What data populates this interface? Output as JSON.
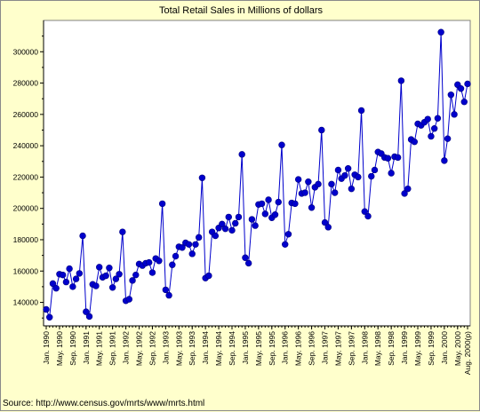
{
  "chart_data": {
    "type": "line",
    "title": "Total Retail Sales in Millions of dollars",
    "source": "Source: http://www.census.gov/mrts/www/mrts.html",
    "xlabel": "",
    "ylabel": "",
    "ylim": [
      125000,
      320000
    ],
    "y_ticks": [
      140000,
      160000,
      180000,
      200000,
      220000,
      240000,
      260000,
      280000,
      300000
    ],
    "y_tick_labels": [
      "140000",
      "160000",
      "180000",
      "200000",
      "220000",
      "240000",
      "260000",
      "280000",
      "300000"
    ],
    "x_tick_labels": [
      "Jan. 1990",
      "May. 1990",
      "Sep. 1990",
      "Jan. 1991",
      "May. 1991",
      "Sep. 1991",
      "Jan. 1992",
      "May. 1992",
      "Sep. 1992",
      "Jan. 1993",
      "May. 1993",
      "Sep. 1993",
      "Jan. 1994",
      "May. 1994",
      "Sep. 1994",
      "Jan. 1995",
      "May. 1995",
      "Sep. 1995",
      "Jan. 1996",
      "May. 1996",
      "Sep. 1996",
      "Jan. 1997",
      "May. 1997",
      "Sep. 1997",
      "Jan. 1998",
      "May. 1998",
      "Sep. 1998",
      "Jan. 1999",
      "May. 1999",
      "Sep. 1999",
      "Jan. 2000",
      "May. 2000",
      "Aug. 2000(p)"
    ],
    "grid": false,
    "legend": "none",
    "colors": {
      "line": "#0000cc",
      "marker": "#0000cc",
      "axis": "#000000"
    },
    "x": [
      "1990-01",
      "1990-02",
      "1990-03",
      "1990-04",
      "1990-05",
      "1990-06",
      "1990-07",
      "1990-08",
      "1990-09",
      "1990-10",
      "1990-11",
      "1990-12",
      "1991-01",
      "1991-02",
      "1991-03",
      "1991-04",
      "1991-05",
      "1991-06",
      "1991-07",
      "1991-08",
      "1991-09",
      "1991-10",
      "1991-11",
      "1991-12",
      "1992-01",
      "1992-02",
      "1992-03",
      "1992-04",
      "1992-05",
      "1992-06",
      "1992-07",
      "1992-08",
      "1992-09",
      "1992-10",
      "1992-11",
      "1992-12",
      "1993-01",
      "1993-02",
      "1993-03",
      "1993-04",
      "1993-05",
      "1993-06",
      "1993-07",
      "1993-08",
      "1993-09",
      "1993-10",
      "1993-11",
      "1993-12",
      "1994-01",
      "1994-02",
      "1994-03",
      "1994-04",
      "1994-05",
      "1994-06",
      "1994-07",
      "1994-08",
      "1994-09",
      "1994-10",
      "1994-11",
      "1994-12",
      "1995-01",
      "1995-02",
      "1995-03",
      "1995-04",
      "1995-05",
      "1995-06",
      "1995-07",
      "1995-08",
      "1995-09",
      "1995-10",
      "1995-11",
      "1995-12",
      "1996-01",
      "1996-02",
      "1996-03",
      "1996-04",
      "1996-05",
      "1996-06",
      "1996-07",
      "1996-08",
      "1996-09",
      "1996-10",
      "1996-11",
      "1996-12",
      "1997-01",
      "1997-02",
      "1997-03",
      "1997-04",
      "1997-05",
      "1997-06",
      "1997-07",
      "1997-08",
      "1997-09",
      "1997-10",
      "1997-11",
      "1997-12",
      "1998-01",
      "1998-02",
      "1998-03",
      "1998-04",
      "1998-05",
      "1998-06",
      "1998-07",
      "1998-08",
      "1998-09",
      "1998-10",
      "1998-11",
      "1998-12",
      "1999-01",
      "1999-02",
      "1999-03",
      "1999-04",
      "1999-05",
      "1999-06",
      "1999-07",
      "1999-08",
      "1999-09",
      "1999-10",
      "1999-11",
      "1999-12",
      "2000-01",
      "2000-02",
      "2000-03",
      "2000-04",
      "2000-05",
      "2000-06",
      "2000-07",
      "2000-08"
    ],
    "values": [
      135500,
      130500,
      152000,
      149000,
      158000,
      157500,
      153000,
      161500,
      150000,
      155000,
      158500,
      182500,
      134000,
      131000,
      151500,
      150500,
      162500,
      156000,
      157000,
      162000,
      149500,
      155000,
      158000,
      185000,
      141000,
      142000,
      154000,
      157500,
      164500,
      163500,
      165000,
      165500,
      159000,
      168000,
      166500,
      203000,
      148000,
      144500,
      164000,
      169500,
      175500,
      175000,
      178000,
      177000,
      171000,
      177000,
      181500,
      219500,
      155500,
      157000,
      185000,
      182500,
      187500,
      190000,
      187000,
      194500,
      186000,
      190500,
      194500,
      234500,
      168500,
      165000,
      193000,
      189000,
      202500,
      203000,
      196500,
      205500,
      194000,
      196000,
      204000,
      240500,
      177000,
      183500,
      203500,
      203000,
      218500,
      209500,
      210000,
      217000,
      200500,
      213500,
      215500,
      250000,
      191000,
      188000,
      215500,
      210000,
      224500,
      219000,
      221000,
      225500,
      212500,
      221500,
      220000,
      262500,
      198000,
      195000,
      220500,
      224500,
      236000,
      235000,
      232500,
      232000,
      222500,
      233000,
      232500,
      281500,
      209500,
      212500,
      244000,
      242500,
      254000,
      253000,
      255000,
      257000,
      246000,
      251000,
      257500,
      312500,
      230500,
      244500,
      272500,
      260000,
      279000,
      276500,
      268000,
      279500
    ]
  }
}
